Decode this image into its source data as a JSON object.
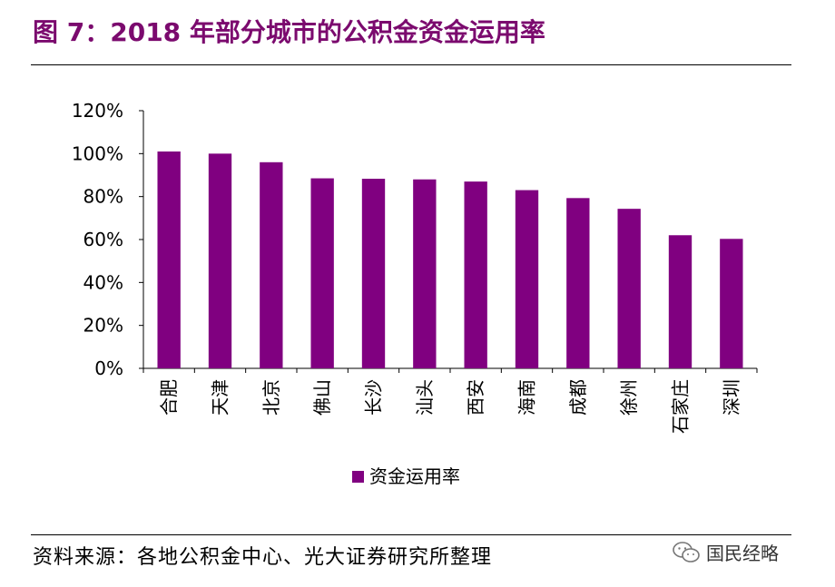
{
  "title": "图 7：2018 年部分城市的公积金资金运用率",
  "source": "资料来源：各地公积金中心、光大证券研究所整理",
  "watermark": "国民经略",
  "colors": {
    "bar": "#800080",
    "title": "#7b0a6e"
  },
  "chart_data": {
    "type": "bar",
    "title": "",
    "xlabel": "",
    "ylabel": "",
    "ylim": [
      0,
      120
    ],
    "yticks": [
      "0%",
      "20%",
      "40%",
      "60%",
      "80%",
      "100%",
      "120%"
    ],
    "categories": [
      "合肥",
      "天津",
      "北京",
      "佛山",
      "长沙",
      "汕头",
      "西安",
      "海南",
      "成都",
      "徐州",
      "石家庄",
      "深圳"
    ],
    "series": [
      {
        "name": "资金运用率",
        "values": [
          101,
          100,
          96,
          88.5,
          88.3,
          88,
          87,
          83,
          79.3,
          74.3,
          62,
          60.3
        ]
      }
    ],
    "legend": "bottom-center"
  }
}
